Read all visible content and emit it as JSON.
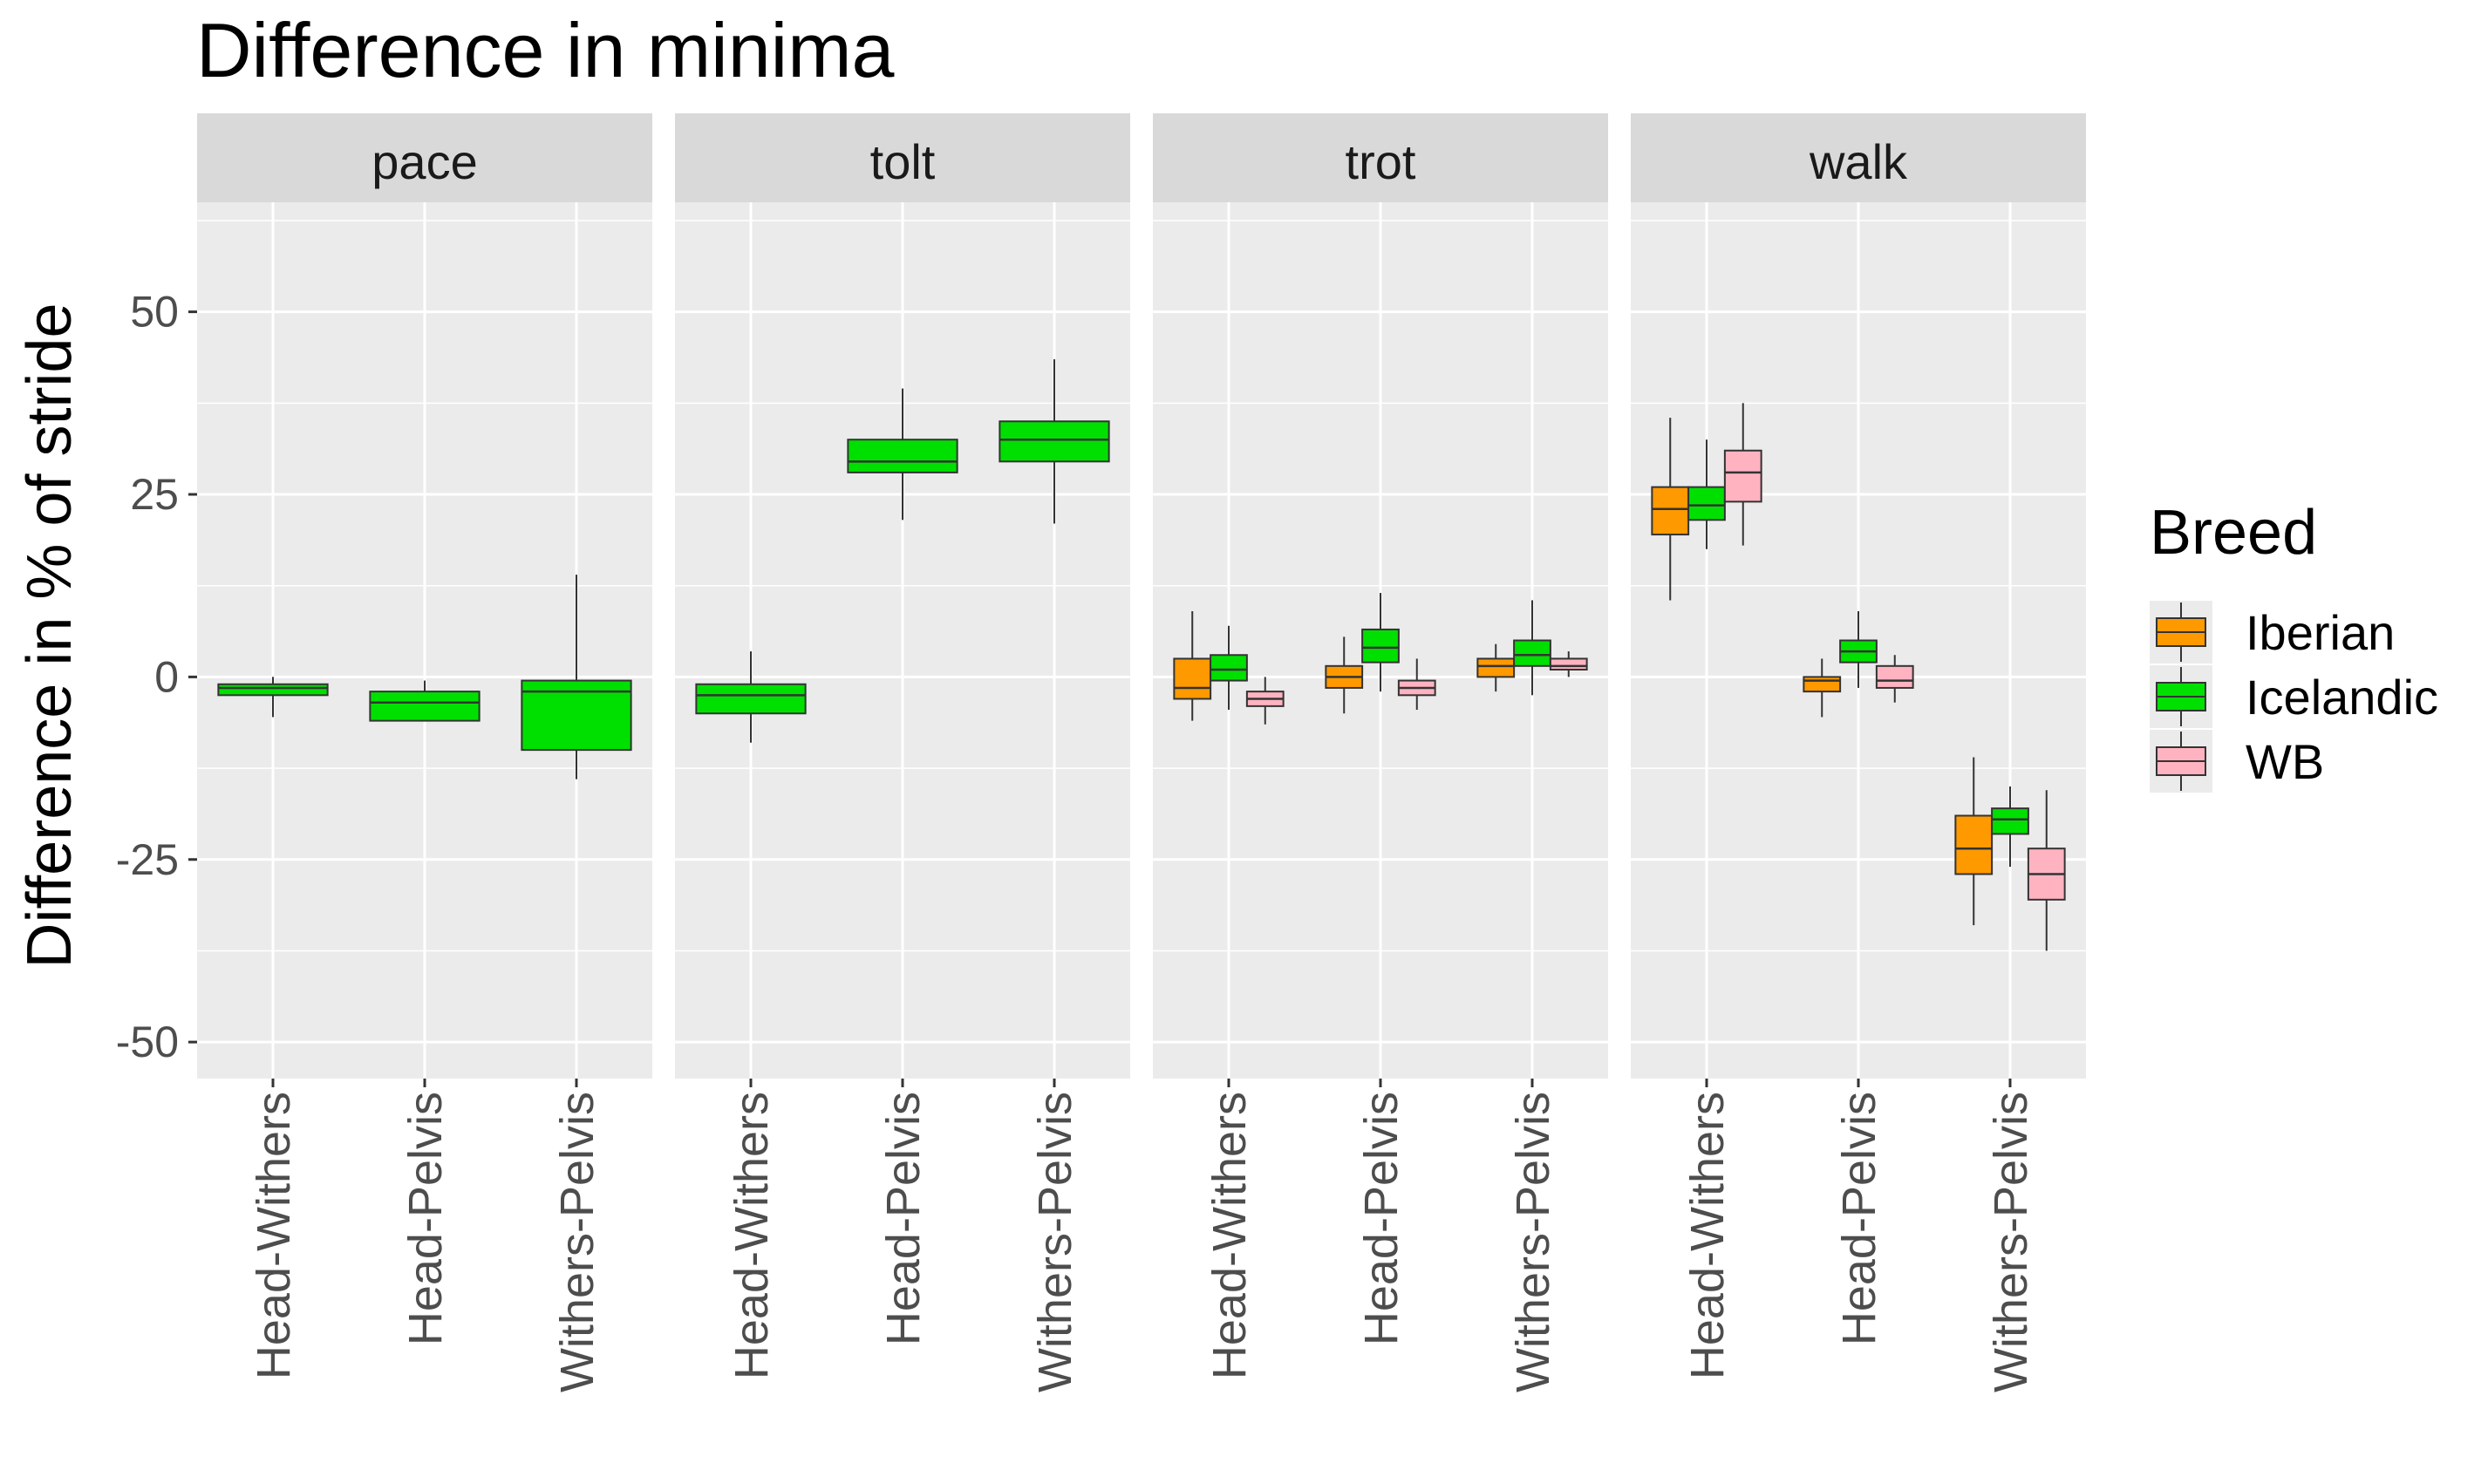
{
  "chart_data": {
    "type": "boxplot",
    "title": "Difference in minima",
    "xlabel": "",
    "ylabel": "Difference in % of stride",
    "ylim": [
      -55,
      65
    ],
    "yticks": [
      -50,
      -25,
      0,
      25,
      50
    ],
    "ytick_labels": [
      "-50",
      "-25",
      "0",
      "25",
      "50"
    ],
    "categories": [
      "Head-Withers",
      "Head-Pelvis",
      "Withers-Pelvis"
    ],
    "legend": {
      "title": "Breed",
      "position": "right",
      "entries": [
        {
          "name": "Iberian",
          "color": "#FF9900"
        },
        {
          "name": "Icelandic",
          "color": "#00E000"
        },
        {
          "name": "WB",
          "color": "#FFB3C1"
        }
      ]
    },
    "panels": [
      {
        "label": "pace",
        "groups": [
          {
            "category": "Head-Withers",
            "boxes": [
              {
                "breed": "Icelandic",
                "whisker_low": -5.5,
                "q1": -2.5,
                "median": -1.5,
                "q3": -1,
                "whisker_high": 0
              }
            ]
          },
          {
            "category": "Head-Pelvis",
            "boxes": [
              {
                "breed": "Icelandic",
                "whisker_low": -6,
                "q1": -6,
                "median": -3.5,
                "q3": -2,
                "whisker_high": -0.5
              }
            ]
          },
          {
            "category": "Withers-Pelvis",
            "boxes": [
              {
                "breed": "Icelandic",
                "whisker_low": -14,
                "q1": -10,
                "median": -2,
                "q3": -0.5,
                "whisker_high": 14
              }
            ]
          }
        ]
      },
      {
        "label": "tolt",
        "groups": [
          {
            "category": "Head-Withers",
            "boxes": [
              {
                "breed": "Icelandic",
                "whisker_low": -9,
                "q1": -5,
                "median": -2.5,
                "q3": -1,
                "whisker_high": 3.5
              }
            ]
          },
          {
            "category": "Head-Pelvis",
            "boxes": [
              {
                "breed": "Icelandic",
                "whisker_low": 21.5,
                "q1": 28,
                "median": 29.5,
                "q3": 32.5,
                "whisker_high": 39.5
              }
            ]
          },
          {
            "category": "Withers-Pelvis",
            "boxes": [
              {
                "breed": "Icelandic",
                "whisker_low": 21,
                "q1": 29.5,
                "median": 32.5,
                "q3": 35,
                "whisker_high": 43.5
              }
            ]
          }
        ]
      },
      {
        "label": "trot",
        "groups": [
          {
            "category": "Head-Withers",
            "boxes": [
              {
                "breed": "Iberian",
                "whisker_low": -6,
                "q1": -3,
                "median": -1.5,
                "q3": 2.5,
                "whisker_high": 9
              },
              {
                "breed": "Icelandic",
                "whisker_low": -4.5,
                "q1": -0.5,
                "median": 1,
                "q3": 3,
                "whisker_high": 7
              },
              {
                "breed": "WB",
                "whisker_low": -6.5,
                "q1": -4,
                "median": -3,
                "q3": -2,
                "whisker_high": 0
              }
            ]
          },
          {
            "category": "Head-Pelvis",
            "boxes": [
              {
                "breed": "Iberian",
                "whisker_low": -5,
                "q1": -1.5,
                "median": 0,
                "q3": 1.5,
                "whisker_high": 5.5
              },
              {
                "breed": "Icelandic",
                "whisker_low": -2,
                "q1": 2,
                "median": 4,
                "q3": 6.5,
                "whisker_high": 11.5
              },
              {
                "breed": "WB",
                "whisker_low": -4.5,
                "q1": -2.5,
                "median": -1.5,
                "q3": -0.5,
                "whisker_high": 2.5
              }
            ]
          },
          {
            "category": "Withers-Pelvis",
            "boxes": [
              {
                "breed": "Iberian",
                "whisker_low": -2,
                "q1": 0,
                "median": 1.5,
                "q3": 2.5,
                "whisker_high": 4.5
              },
              {
                "breed": "Icelandic",
                "whisker_low": -2.5,
                "q1": 1.5,
                "median": 3,
                "q3": 5,
                "whisker_high": 10.5
              },
              {
                "breed": "WB",
                "whisker_low": 0,
                "q1": 1,
                "median": 1.5,
                "q3": 2.5,
                "whisker_high": 3.5
              }
            ]
          }
        ]
      },
      {
        "label": "walk",
        "groups": [
          {
            "category": "Head-Withers",
            "boxes": [
              {
                "breed": "Iberian",
                "whisker_low": 10.5,
                "q1": 19.5,
                "median": 23,
                "q3": 26,
                "whisker_high": 35.5
              },
              {
                "breed": "Icelandic",
                "whisker_low": 17.5,
                "q1": 21.5,
                "median": 23.5,
                "q3": 26,
                "whisker_high": 32.5
              },
              {
                "breed": "WB",
                "whisker_low": 18,
                "q1": 24,
                "median": 28,
                "q3": 31,
                "whisker_high": 37.5
              }
            ]
          },
          {
            "category": "Head-Pelvis",
            "boxes": [
              {
                "breed": "Iberian",
                "whisker_low": -5.5,
                "q1": -2,
                "median": -0.5,
                "q3": 0,
                "whisker_high": 2.5
              },
              {
                "breed": "Icelandic",
                "whisker_low": -1.5,
                "q1": 2,
                "median": 3.5,
                "q3": 5,
                "whisker_high": 9
              },
              {
                "breed": "WB",
                "whisker_low": -3.5,
                "q1": -1.5,
                "median": -0.5,
                "q3": 1.5,
                "whisker_high": 3
              }
            ]
          },
          {
            "category": "Withers-Pelvis",
            "boxes": [
              {
                "breed": "Iberian",
                "whisker_low": -34,
                "q1": -27,
                "median": -23.5,
                "q3": -19,
                "whisker_high": -11
              },
              {
                "breed": "Icelandic",
                "whisker_low": -26,
                "q1": -21.5,
                "median": -19.5,
                "q3": -18,
                "whisker_high": -15
              },
              {
                "breed": "WB",
                "whisker_low": -37.5,
                "q1": -30.5,
                "median": -27,
                "q3": -23.5,
                "whisker_high": -15.5
              }
            ]
          }
        ]
      }
    ]
  }
}
